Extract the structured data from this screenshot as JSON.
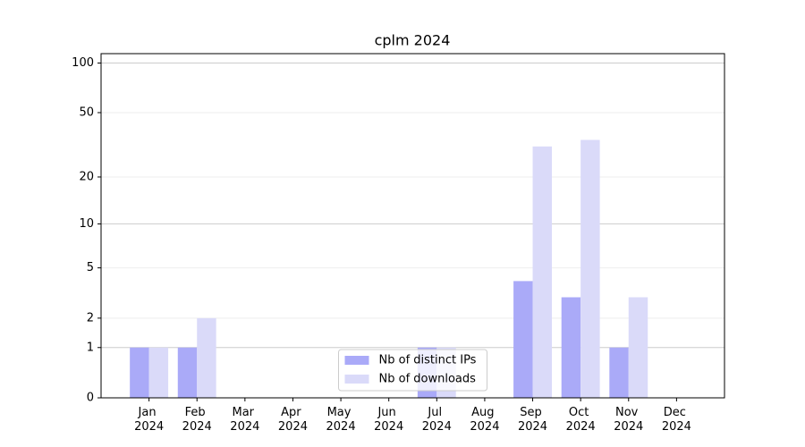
{
  "chart_data": {
    "type": "bar",
    "title": "cplm 2024",
    "categories": [
      "Jan 2024",
      "Feb 2024",
      "Mar 2024",
      "Apr 2024",
      "May 2024",
      "Jun 2024",
      "Jul 2024",
      "Aug 2024",
      "Sep 2024",
      "Oct 2024",
      "Nov 2024",
      "Dec 2024"
    ],
    "series": [
      {
        "name": "Nb of distinct IPs",
        "color": "#aaaaf8",
        "values": [
          1,
          1,
          0,
          0,
          0,
          0,
          1,
          0,
          4,
          3,
          1,
          0
        ]
      },
      {
        "name": "Nb of downloads",
        "color": "#dadaf9",
        "values": [
          1,
          2,
          0,
          0,
          0,
          0,
          1,
          0,
          31,
          34,
          3,
          0
        ]
      }
    ],
    "yscale": "log1p",
    "ylim": [
      0,
      114
    ],
    "yticks": [
      0,
      1,
      2,
      5,
      10,
      20,
      50,
      100
    ],
    "grid": true,
    "legend": "lower center"
  }
}
